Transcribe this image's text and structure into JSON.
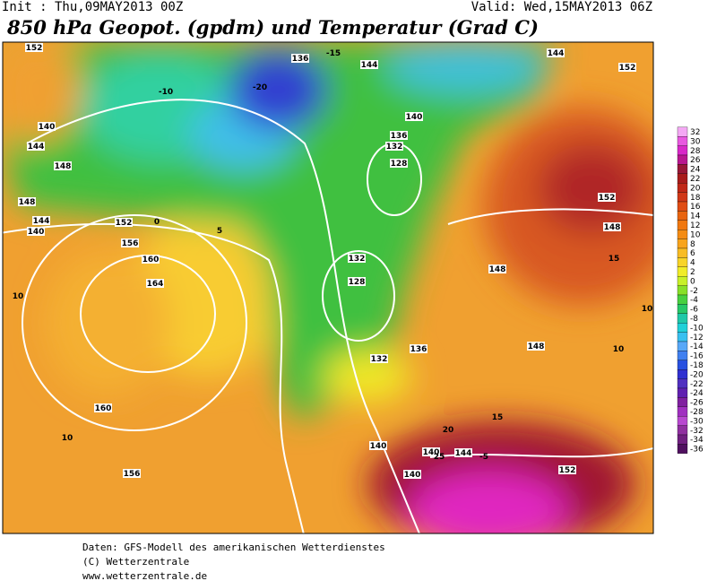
{
  "header": {
    "init": "Init : Thu,09MAY2013 00Z",
    "valid": "Valid: Wed,15MAY2013 06Z",
    "title": "850 hPa Geopot. (gpdm) und Temperatur (Grad C)"
  },
  "legend": {
    "ticks": [
      32,
      30,
      28,
      26,
      24,
      22,
      20,
      18,
      16,
      14,
      12,
      10,
      8,
      6,
      4,
      2,
      0,
      -2,
      -4,
      -6,
      -8,
      -10,
      -12,
      -14,
      -16,
      -18,
      -20,
      -22,
      -24,
      -26,
      -28,
      -30,
      -32,
      -34,
      -36
    ],
    "colors": [
      "#f4a8f4",
      "#e858e0",
      "#d828c8",
      "#b81890",
      "#981838",
      "#a81c1c",
      "#c02818",
      "#d03818",
      "#e04c14",
      "#e86410",
      "#f07810",
      "#f48c14",
      "#f8a41c",
      "#f8bc24",
      "#f8d428",
      "#f0ec28",
      "#c8f028",
      "#88e028",
      "#48d040",
      "#28c868",
      "#20c8a8",
      "#20d0d8",
      "#38c0f0",
      "#58a8f8",
      "#4080f0",
      "#2850e0",
      "#3030d0",
      "#5030c0",
      "#6020b0",
      "#8020a0",
      "#a030c0",
      "#b848d0",
      "#9030a0",
      "#702080",
      "#501060"
    ]
  },
  "map": {
    "labels": [
      152,
      136,
      -15,
      144,
      144,
      152,
      140,
      144,
      148,
      148,
      144,
      140,
      152,
      156,
      160,
      164,
      160,
      156,
      128,
      132,
      136,
      140,
      132,
      128,
      136,
      132,
      140,
      140,
      144,
      140,
      148,
      148,
      152,
      152,
      148,
      10,
      10,
      10,
      10,
      -10,
      -20,
      0,
      5,
      15,
      20,
      25,
      15,
      -5
    ]
  },
  "footer": {
    "line1": "Daten: GFS-Modell des amerikanischen Wetterdienstes",
    "line2": "(C) Wetterzentrale",
    "line3": "www.wetterzentrale.de"
  }
}
